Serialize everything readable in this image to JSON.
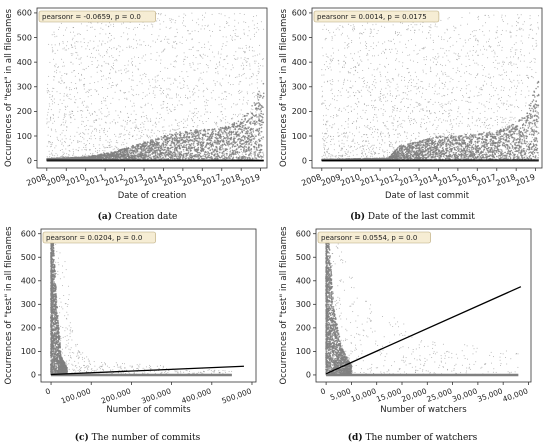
{
  "chart_data": [
    {
      "id": "a",
      "type": "scatter",
      "title": "",
      "caption_tag": "(a)",
      "caption_text": "Creation date",
      "xlabel": "Date of creation",
      "ylabel": "Occurrences of \"test\" in all filenames",
      "annotation": "pearsonr = -0.0659, p = 0.0",
      "x_type": "date",
      "xlim": [
        "2007-07-01",
        "2019-05-01"
      ],
      "ylim": [
        -30,
        620
      ],
      "xticks": [
        "2008",
        "2009",
        "2010",
        "2011",
        "2012",
        "2013",
        "2014",
        "2015",
        "2016",
        "2017",
        "2018",
        "2019"
      ],
      "yticks": [
        0,
        100,
        200,
        300,
        400,
        500,
        600
      ],
      "ytick_labels": [
        "0",
        "100",
        "200",
        "300",
        "400",
        "500",
        "600"
      ],
      "regression_line": [
        [
          "2008-01-01",
          2
        ],
        [
          "2019-03-01",
          1
        ]
      ],
      "scatter_envelope": [
        [
          "2008-01-01",
          600
        ],
        [
          "2010-06-01",
          600
        ],
        [
          "2013-01-01",
          600
        ],
        [
          "2019-03-01",
          600
        ]
      ],
      "dense_band": [
        [
          "2008-01-01",
          8
        ],
        [
          "2010-01-01",
          15
        ],
        [
          "2011-06-01",
          35
        ],
        [
          "2013-01-01",
          75
        ],
        [
          "2014-06-01",
          110
        ],
        [
          "2015-06-01",
          125
        ],
        [
          "2016-06-01",
          130
        ],
        [
          "2017-06-01",
          140
        ],
        [
          "2018-06-01",
          200
        ],
        [
          "2019-03-01",
          320
        ]
      ],
      "point_color": "#808080",
      "line_color": "#000000"
    },
    {
      "id": "b",
      "type": "scatter",
      "title": "",
      "caption_tag": "(b)",
      "caption_text": "Date of the last commit",
      "xlabel": "Date of last commit",
      "ylabel": "Occurrences of \"test\" in all filenames",
      "annotation": "pearsonr = 0.0014, p = 0.0175",
      "x_type": "date",
      "xlim": [
        "2007-07-01",
        "2019-05-01"
      ],
      "ylim": [
        -30,
        620
      ],
      "xticks": [
        "2008",
        "2009",
        "2010",
        "2011",
        "2012",
        "2013",
        "2014",
        "2015",
        "2016",
        "2017",
        "2018",
        "2019"
      ],
      "yticks": [
        0,
        100,
        200,
        300,
        400,
        500,
        600
      ],
      "ytick_labels": [
        "0",
        "100",
        "200",
        "300",
        "400",
        "500",
        "600"
      ],
      "regression_line": [
        [
          "2008-01-01",
          1
        ],
        [
          "2019-03-01",
          2
        ]
      ],
      "scatter_envelope": [
        [
          "2008-01-01",
          560
        ],
        [
          "2011-06-01",
          560
        ],
        [
          "2012-01-01",
          600
        ],
        [
          "2019-03-01",
          600
        ]
      ],
      "dense_band": [
        [
          "2008-01-01",
          5
        ],
        [
          "2011-06-01",
          10
        ],
        [
          "2012-01-01",
          60
        ],
        [
          "2014-01-01",
          100
        ],
        [
          "2016-01-01",
          110
        ],
        [
          "2017-06-01",
          130
        ],
        [
          "2018-06-01",
          180
        ],
        [
          "2019-03-01",
          330
        ]
      ],
      "point_color": "#808080",
      "line_color": "#000000"
    },
    {
      "id": "c",
      "type": "scatter",
      "title": "",
      "caption_tag": "(c)",
      "caption_text": "The number of commits",
      "xlabel": "Number of commits",
      "ylabel": "Occurrences of \"test\" in all filenames",
      "annotation": "pearsonr = 0.0204, p = 0.0",
      "x_type": "number",
      "xlim": [
        -25000,
        510000
      ],
      "ylim": [
        -30,
        620
      ],
      "xticks": [
        0,
        100000,
        200000,
        300000,
        400000,
        500000
      ],
      "xtick_labels": [
        "0",
        "100,000",
        "200,000",
        "300,000",
        "400,000",
        "500,000"
      ],
      "yticks": [
        0,
        100,
        200,
        300,
        400,
        500,
        600
      ],
      "ytick_labels": [
        "0",
        "100",
        "200",
        "300",
        "400",
        "500",
        "600"
      ],
      "regression_line": [
        [
          0,
          2
        ],
        [
          480000,
          37
        ]
      ],
      "scatter_envelope": [
        [
          0,
          600
        ],
        [
          10000,
          600
        ],
        [
          30000,
          560
        ],
        [
          60000,
          150
        ],
        [
          100000,
          60
        ],
        [
          450000,
          20
        ]
      ],
      "dense_band": [
        [
          0,
          600
        ],
        [
          5000,
          600
        ],
        [
          15000,
          300
        ],
        [
          25000,
          80
        ],
        [
          40000,
          30
        ]
      ],
      "point_color": "#808080",
      "line_color": "#000000"
    },
    {
      "id": "d",
      "type": "scatter",
      "title": "",
      "caption_tag": "(d)",
      "caption_text": "The number of watchers",
      "xlabel": "Number of watchers",
      "ylabel": "Occurrences of \"test\" in all filenames",
      "annotation": "pearsonr = 0.0554, p = 0.0",
      "x_type": "number",
      "xlim": [
        -2000,
        40500
      ],
      "ylim": [
        -30,
        620
      ],
      "xticks": [
        0,
        5000,
        10000,
        15000,
        20000,
        25000,
        30000,
        35000,
        40000
      ],
      "xtick_labels": [
        "0",
        "5,000",
        "10,000",
        "15,000",
        "20,000",
        "25,000",
        "30,000",
        "35,000",
        "40,000"
      ],
      "yticks": [
        0,
        100,
        200,
        300,
        400,
        500,
        600
      ],
      "ytick_labels": [
        "0",
        "100",
        "200",
        "300",
        "400",
        "500",
        "600"
      ],
      "regression_line": [
        [
          0,
          5
        ],
        [
          38500,
          375
        ]
      ],
      "scatter_envelope": [
        [
          0,
          600
        ],
        [
          2000,
          600
        ],
        [
          5000,
          420
        ],
        [
          10000,
          300
        ],
        [
          20000,
          150
        ],
        [
          38000,
          100
        ]
      ],
      "dense_band": [
        [
          0,
          600
        ],
        [
          500,
          600
        ],
        [
          1500,
          300
        ],
        [
          3000,
          120
        ],
        [
          5000,
          40
        ]
      ],
      "point_color": "#808080",
      "line_color": "#000000"
    }
  ]
}
